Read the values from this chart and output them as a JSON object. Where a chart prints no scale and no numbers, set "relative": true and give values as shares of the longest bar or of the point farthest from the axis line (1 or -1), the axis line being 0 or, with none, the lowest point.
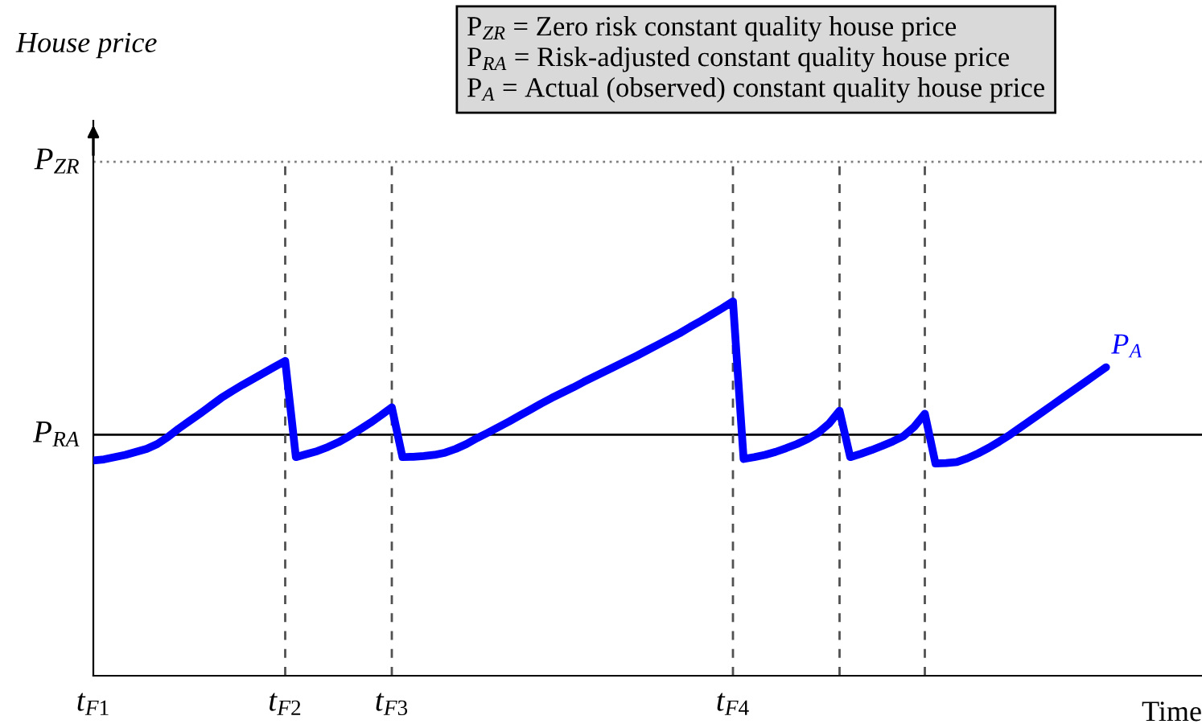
{
  "chart_data": {
    "type": "line",
    "relative": true,
    "xlabel": "Time",
    "categories": [
      "t$_{F1}$",
      null,
      null,
      null,
      null,
      null,
      null,
      null,
      null,
      null,
      null,
      null,
      null,
      null,
      null,
      null,
      null,
      null,
      "t$_{F2}$",
      null,
      null,
      null,
      null,
      null,
      null,
      null,
      null,
      null,
      "t$_{F3}$",
      null,
      null,
      null,
      null,
      null,
      null,
      null,
      null,
      null,
      null,
      null,
      null,
      null,
      null,
      null,
      null,
      null,
      null,
      null,
      null,
      null,
      null,
      null,
      null,
      null,
      null,
      null,
      null,
      null,
      null,
      null,
      "t$_{F4}$",
      null,
      null,
      null,
      null,
      null,
      null,
      null,
      null,
      null,
      null,
      null,
      null,
      null,
      null,
      null,
      null,
      null,
      null,
      null,
      null,
      null,
      null,
      null,
      null,
      null,
      null,
      null,
      null,
      null,
      null,
      null,
      null,
      null,
      null,
      null,
      null,
      null,
      null,
      null,
      null,
      null,
      null,
      null,
      null
    ],
    "series": [
      {
        "name": "P$_{A}$",
        "color": "#0000ff",
        "values": [
          0.575,
          0.578,
          0.584,
          0.59,
          0.598,
          0.606,
          0.619,
          0.638,
          0.66,
          0.68,
          0.7,
          0.721,
          0.742,
          0.76,
          0.777,
          0.793,
          0.809,
          0.825,
          0.841,
          0.584,
          0.592,
          0.6,
          0.611,
          0.624,
          0.64,
          0.658,
          0.676,
          0.696,
          0.717,
          0.584,
          0.585,
          0.587,
          0.59,
          0.596,
          0.606,
          0.619,
          0.635,
          0.649,
          0.664,
          0.679,
          0.695,
          0.711,
          0.727,
          0.742,
          0.756,
          0.77,
          0.785,
          0.799,
          0.813,
          0.827,
          0.841,
          0.855,
          0.87,
          0.885,
          0.9,
          0.915,
          0.932,
          0.948,
          0.965,
          0.982,
          1.0,
          0.579,
          0.584,
          0.59,
          0.598,
          0.608,
          0.619,
          0.632,
          0.649,
          0.673,
          0.708,
          0.584,
          0.593,
          0.603,
          0.614,
          0.626,
          0.64,
          0.665,
          0.7,
          0.567,
          0.568,
          0.571,
          0.581,
          0.594,
          0.609,
          0.626,
          0.644,
          0.664,
          0.684,
          0.704,
          0.724,
          0.744,
          0.764,
          0.784,
          0.804,
          0.824,
          null,
          null,
          null,
          null,
          null,
          null,
          null,
          null,
          null
        ]
      }
    ],
    "ref_lines": [
      {
        "axis": "y",
        "value": 1.373,
        "label": "P$_{ZR}$",
        "color": "#808080",
        "line_style": "dotted"
      },
      {
        "axis": "y",
        "value": 0.644,
        "label": "P$_{RA}$",
        "color": "#000000",
        "line_style": "solid"
      }
    ],
    "grid": "x",
    "annotations": [
      "House price",
      "P$_{ZR}$ = Zero risk constant quality house price",
      "P$_{RA}$ = Risk-adjusted constant quality house price",
      "P$_{A}$ = Actual (observed) constant quality house price"
    ],
    "marker": "none",
    "line_style": "solid"
  }
}
